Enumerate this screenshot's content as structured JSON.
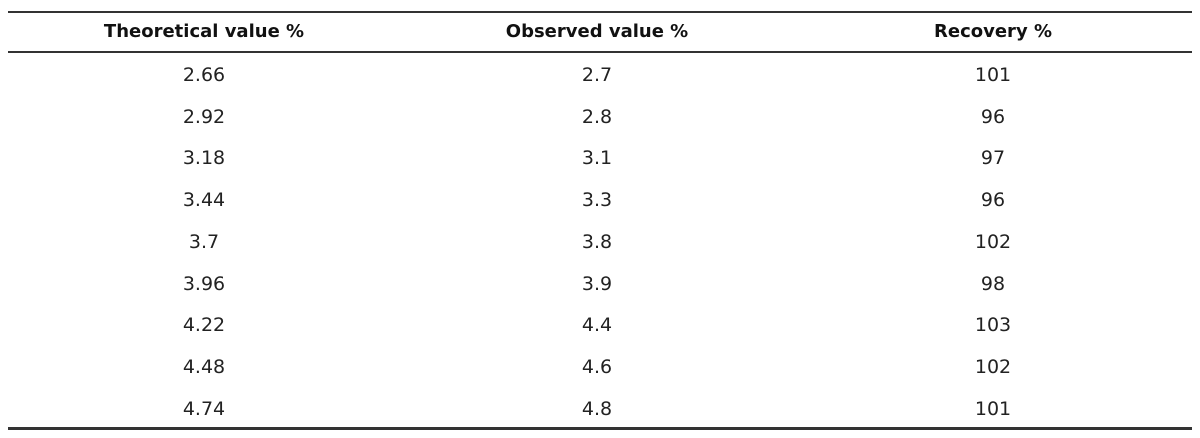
{
  "table": {
    "header": [
      "Theoretical value %",
      "Observed value %",
      "Recovery %"
    ],
    "rows": [
      [
        2.66,
        2.7,
        101
      ],
      [
        2.92,
        2.8,
        96
      ],
      [
        3.18,
        3.1,
        97
      ],
      [
        3.44,
        3.3,
        96
      ],
      [
        3.7,
        3.8,
        102
      ],
      [
        3.96,
        3.9,
        98
      ],
      [
        4.22,
        4.4,
        103
      ],
      [
        4.48,
        4.6,
        102
      ],
      [
        4.74,
        4.8,
        101
      ]
    ]
  }
}
